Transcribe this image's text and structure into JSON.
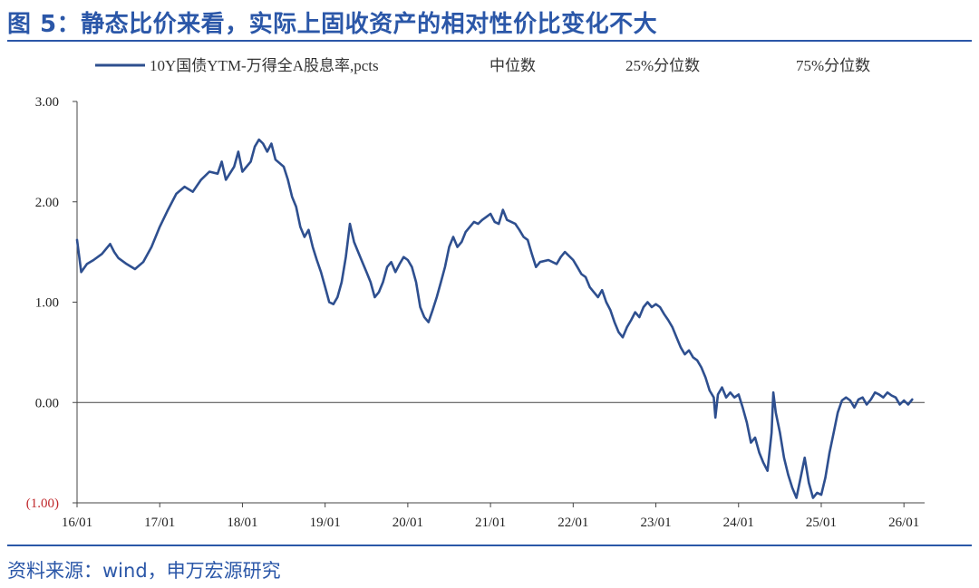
{
  "figure": {
    "title": "图 5：静态比价来看，实际上固收资产的相对性价比变化不大",
    "source": "资料来源：wind，申万宏源研究",
    "colors": {
      "series": "#2e4f8f",
      "accent": "#2b57a8",
      "axis": "#444444",
      "negative_tick": "#c0282c"
    }
  },
  "chart_data": {
    "type": "line",
    "title": "",
    "xlabel": "",
    "ylabel": "",
    "ylim": [
      -1.0,
      3.0
    ],
    "yticks": [
      3.0,
      2.0,
      1.0,
      0.0,
      -1.0
    ],
    "ytick_labels": [
      "3.00",
      "2.00",
      "1.00",
      "0.00",
      "(1.00)"
    ],
    "x_start": 2016.0,
    "x_end": 2026.25,
    "xticks": [
      2016,
      2017,
      2018,
      2019,
      2020,
      2021,
      2022,
      2023,
      2024,
      2025,
      2026
    ],
    "xtick_labels": [
      "16/01",
      "17/01",
      "18/01",
      "19/01",
      "20/01",
      "21/01",
      "22/01",
      "23/01",
      "24/01",
      "25/01",
      "26/01"
    ],
    "legend": [
      "10Y国债YTM-万得全A股息率,pcts",
      "中位数",
      "25%分位数",
      "75%分位数"
    ],
    "legend_position": "top",
    "series": [
      {
        "name": "10Y国债YTM-万得全A股息率,pcts",
        "points": [
          [
            2016.0,
            1.62
          ],
          [
            2016.05,
            1.3
          ],
          [
            2016.12,
            1.38
          ],
          [
            2016.2,
            1.42
          ],
          [
            2016.3,
            1.48
          ],
          [
            2016.4,
            1.58
          ],
          [
            2016.45,
            1.5
          ],
          [
            2016.5,
            1.44
          ],
          [
            2016.6,
            1.38
          ],
          [
            2016.7,
            1.33
          ],
          [
            2016.8,
            1.4
          ],
          [
            2016.9,
            1.55
          ],
          [
            2017.0,
            1.75
          ],
          [
            2017.1,
            1.92
          ],
          [
            2017.2,
            2.08
          ],
          [
            2017.3,
            2.15
          ],
          [
            2017.4,
            2.1
          ],
          [
            2017.5,
            2.22
          ],
          [
            2017.6,
            2.3
          ],
          [
            2017.7,
            2.28
          ],
          [
            2017.75,
            2.4
          ],
          [
            2017.8,
            2.22
          ],
          [
            2017.9,
            2.35
          ],
          [
            2017.95,
            2.5
          ],
          [
            2018.0,
            2.3
          ],
          [
            2018.1,
            2.4
          ],
          [
            2018.15,
            2.55
          ],
          [
            2018.2,
            2.62
          ],
          [
            2018.25,
            2.58
          ],
          [
            2018.3,
            2.5
          ],
          [
            2018.35,
            2.58
          ],
          [
            2018.4,
            2.42
          ],
          [
            2018.5,
            2.35
          ],
          [
            2018.55,
            2.22
          ],
          [
            2018.6,
            2.05
          ],
          [
            2018.65,
            1.95
          ],
          [
            2018.7,
            1.75
          ],
          [
            2018.75,
            1.65
          ],
          [
            2018.8,
            1.72
          ],
          [
            2018.85,
            1.55
          ],
          [
            2018.9,
            1.42
          ],
          [
            2018.95,
            1.3
          ],
          [
            2019.0,
            1.15
          ],
          [
            2019.05,
            1.0
          ],
          [
            2019.1,
            0.98
          ],
          [
            2019.15,
            1.05
          ],
          [
            2019.2,
            1.2
          ],
          [
            2019.25,
            1.45
          ],
          [
            2019.3,
            1.78
          ],
          [
            2019.35,
            1.6
          ],
          [
            2019.4,
            1.5
          ],
          [
            2019.45,
            1.4
          ],
          [
            2019.5,
            1.3
          ],
          [
            2019.55,
            1.2
          ],
          [
            2019.6,
            1.05
          ],
          [
            2019.65,
            1.1
          ],
          [
            2019.7,
            1.2
          ],
          [
            2019.75,
            1.35
          ],
          [
            2019.8,
            1.4
          ],
          [
            2019.85,
            1.3
          ],
          [
            2019.9,
            1.38
          ],
          [
            2019.95,
            1.45
          ],
          [
            2020.0,
            1.42
          ],
          [
            2020.05,
            1.35
          ],
          [
            2020.1,
            1.2
          ],
          [
            2020.15,
            0.95
          ],
          [
            2020.2,
            0.85
          ],
          [
            2020.25,
            0.8
          ],
          [
            2020.3,
            0.92
          ],
          [
            2020.35,
            1.05
          ],
          [
            2020.4,
            1.2
          ],
          [
            2020.45,
            1.35
          ],
          [
            2020.5,
            1.55
          ],
          [
            2020.55,
            1.65
          ],
          [
            2020.6,
            1.55
          ],
          [
            2020.65,
            1.6
          ],
          [
            2020.7,
            1.7
          ],
          [
            2020.75,
            1.75
          ],
          [
            2020.8,
            1.8
          ],
          [
            2020.85,
            1.78
          ],
          [
            2020.9,
            1.82
          ],
          [
            2020.95,
            1.85
          ],
          [
            2021.0,
            1.88
          ],
          [
            2021.05,
            1.8
          ],
          [
            2021.1,
            1.78
          ],
          [
            2021.15,
            1.92
          ],
          [
            2021.2,
            1.82
          ],
          [
            2021.3,
            1.78
          ],
          [
            2021.35,
            1.72
          ],
          [
            2021.4,
            1.65
          ],
          [
            2021.45,
            1.62
          ],
          [
            2021.5,
            1.48
          ],
          [
            2021.55,
            1.35
          ],
          [
            2021.6,
            1.4
          ],
          [
            2021.7,
            1.42
          ],
          [
            2021.8,
            1.38
          ],
          [
            2021.85,
            1.45
          ],
          [
            2021.9,
            1.5
          ],
          [
            2022.0,
            1.42
          ],
          [
            2022.05,
            1.35
          ],
          [
            2022.1,
            1.28
          ],
          [
            2022.15,
            1.25
          ],
          [
            2022.2,
            1.15
          ],
          [
            2022.25,
            1.1
          ],
          [
            2022.3,
            1.05
          ],
          [
            2022.35,
            1.12
          ],
          [
            2022.4,
            1.0
          ],
          [
            2022.45,
            0.92
          ],
          [
            2022.5,
            0.8
          ],
          [
            2022.55,
            0.7
          ],
          [
            2022.6,
            0.65
          ],
          [
            2022.65,
            0.75
          ],
          [
            2022.7,
            0.82
          ],
          [
            2022.75,
            0.9
          ],
          [
            2022.8,
            0.85
          ],
          [
            2022.85,
            0.95
          ],
          [
            2022.9,
            1.0
          ],
          [
            2022.95,
            0.95
          ],
          [
            2023.0,
            0.98
          ],
          [
            2023.05,
            0.95
          ],
          [
            2023.1,
            0.88
          ],
          [
            2023.15,
            0.82
          ],
          [
            2023.2,
            0.75
          ],
          [
            2023.25,
            0.65
          ],
          [
            2023.3,
            0.55
          ],
          [
            2023.35,
            0.48
          ],
          [
            2023.4,
            0.52
          ],
          [
            2023.45,
            0.45
          ],
          [
            2023.5,
            0.42
          ],
          [
            2023.55,
            0.35
          ],
          [
            2023.6,
            0.25
          ],
          [
            2023.65,
            0.12
          ],
          [
            2023.7,
            0.05
          ],
          [
            2023.72,
            -0.15
          ],
          [
            2023.75,
            0.08
          ],
          [
            2023.8,
            0.15
          ],
          [
            2023.85,
            0.05
          ],
          [
            2023.9,
            0.1
          ],
          [
            2023.95,
            0.05
          ],
          [
            2024.0,
            0.08
          ],
          [
            2024.05,
            -0.05
          ],
          [
            2024.1,
            -0.2
          ],
          [
            2024.15,
            -0.4
          ],
          [
            2024.2,
            -0.35
          ],
          [
            2024.25,
            -0.5
          ],
          [
            2024.3,
            -0.6
          ],
          [
            2024.35,
            -0.68
          ],
          [
            2024.4,
            -0.3
          ],
          [
            2024.42,
            0.1
          ],
          [
            2024.45,
            -0.1
          ],
          [
            2024.5,
            -0.3
          ],
          [
            2024.55,
            -0.55
          ],
          [
            2024.6,
            -0.72
          ],
          [
            2024.65,
            -0.85
          ],
          [
            2024.7,
            -0.95
          ],
          [
            2024.75,
            -0.75
          ],
          [
            2024.8,
            -0.55
          ],
          [
            2024.85,
            -0.8
          ],
          [
            2024.9,
            -0.95
          ],
          [
            2024.95,
            -0.9
          ],
          [
            2025.0,
            -0.92
          ],
          [
            2025.05,
            -0.75
          ],
          [
            2025.1,
            -0.5
          ],
          [
            2025.15,
            -0.3
          ],
          [
            2025.2,
            -0.1
          ],
          [
            2025.25,
            0.02
          ],
          [
            2025.3,
            0.05
          ],
          [
            2025.35,
            0.02
          ],
          [
            2025.4,
            -0.05
          ],
          [
            2025.45,
            0.03
          ],
          [
            2025.5,
            0.05
          ],
          [
            2025.55,
            -0.02
          ],
          [
            2025.6,
            0.03
          ],
          [
            2025.65,
            0.1
          ],
          [
            2025.7,
            0.08
          ],
          [
            2025.75,
            0.05
          ],
          [
            2025.8,
            0.1
          ],
          [
            2025.85,
            0.07
          ],
          [
            2025.9,
            0.05
          ],
          [
            2025.95,
            -0.02
          ],
          [
            2026.0,
            0.02
          ],
          [
            2026.05,
            -0.02
          ],
          [
            2026.1,
            0.03
          ]
        ]
      }
    ]
  }
}
